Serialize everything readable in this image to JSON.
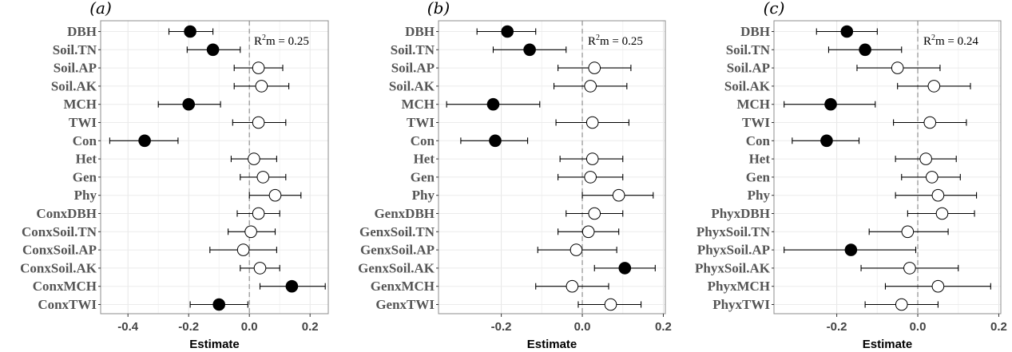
{
  "chart_data": [
    {
      "type": "scatter",
      "panel_label": "(a)",
      "xlabel": "Estimate",
      "x_ticks": [
        -0.4,
        -0.2,
        0.0,
        0.2
      ],
      "x_tick_labels": [
        "-0.4",
        "-0.2",
        "0.0",
        "0.2"
      ],
      "xlim": [
        -0.49,
        0.26
      ],
      "reference_line": 0,
      "annotation": {
        "prefix": "R",
        "sup": "2",
        "suffix": "m = ",
        "value": "0.25"
      },
      "categories": [
        "DBH",
        "Soil.TN",
        "Soil.AP",
        "Soil.AK",
        "MCH",
        "TWI",
        "Con",
        "Het",
        "Gen",
        "Phy",
        "ConxDBH",
        "ConxSoil.TN",
        "ConxSoil.AP",
        "ConxSoil.AK",
        "ConxMCH",
        "ConxTWI"
      ],
      "estimate": [
        -0.195,
        -0.12,
        0.03,
        0.04,
        -0.2,
        0.03,
        -0.345,
        0.015,
        0.045,
        0.085,
        0.03,
        0.005,
        -0.02,
        0.035,
        0.14,
        -0.1
      ],
      "lower": [
        -0.265,
        -0.205,
        -0.05,
        -0.05,
        -0.3,
        -0.055,
        -0.46,
        -0.06,
        -0.03,
        0.0,
        -0.04,
        -0.07,
        -0.13,
        -0.03,
        0.035,
        -0.195
      ],
      "upper": [
        -0.12,
        -0.03,
        0.11,
        0.13,
        -0.095,
        0.12,
        -0.235,
        0.09,
        0.12,
        0.17,
        0.1,
        0.085,
        0.09,
        0.1,
        0.25,
        -0.005
      ],
      "significant": [
        true,
        true,
        false,
        false,
        true,
        false,
        true,
        false,
        false,
        false,
        false,
        false,
        false,
        false,
        true,
        true
      ]
    },
    {
      "type": "scatter",
      "panel_label": "(b)",
      "xlabel": "Estimate",
      "x_ticks": [
        -0.2,
        0.0,
        0.2
      ],
      "x_tick_labels": [
        "-0.2",
        "0.0",
        "0.2"
      ],
      "xlim": [
        -0.355,
        0.205
      ],
      "reference_line": 0,
      "annotation": {
        "prefix": "R",
        "sup": "2",
        "suffix": "m = ",
        "value": "0.25"
      },
      "categories": [
        "DBH",
        "Soil.TN",
        "Soil.AP",
        "Soil.AK",
        "MCH",
        "TWI",
        "Con",
        "Het",
        "Gen",
        "Phy",
        "GenxDBH",
        "GenxSoil.TN",
        "GenxSoil.AP",
        "GenxSoil.AK",
        "GenxMCH",
        "GenxTWI"
      ],
      "estimate": [
        -0.185,
        -0.13,
        0.03,
        0.02,
        -0.22,
        0.025,
        -0.215,
        0.025,
        0.02,
        0.09,
        0.03,
        0.015,
        -0.015,
        0.105,
        -0.025,
        0.07
      ],
      "lower": [
        -0.26,
        -0.22,
        -0.06,
        -0.07,
        -0.335,
        -0.065,
        -0.3,
        -0.055,
        -0.06,
        0.0,
        -0.04,
        -0.06,
        -0.11,
        0.03,
        -0.115,
        -0.01
      ],
      "upper": [
        -0.115,
        -0.04,
        0.12,
        0.11,
        -0.105,
        0.115,
        -0.135,
        0.1,
        0.1,
        0.175,
        0.1,
        0.09,
        0.085,
        0.18,
        0.065,
        0.145
      ],
      "significant": [
        true,
        true,
        false,
        false,
        true,
        false,
        true,
        false,
        false,
        false,
        false,
        false,
        false,
        true,
        false,
        false
      ]
    },
    {
      "type": "scatter",
      "panel_label": "(c)",
      "xlabel": "Estimate",
      "x_ticks": [
        -0.2,
        0.0,
        0.2
      ],
      "x_tick_labels": [
        "-0.2",
        "0.0",
        "0.2"
      ],
      "xlim": [
        -0.355,
        0.205
      ],
      "reference_line": 0,
      "annotation": {
        "prefix": "R",
        "sup": "2",
        "suffix": "m = ",
        "value": "0.24"
      },
      "categories": [
        "DBH",
        "Soil.TN",
        "Soil.AP",
        "Soil.AK",
        "MCH",
        "TWI",
        "Con",
        "Het",
        "Gen",
        "Phy",
        "PhyxDBH",
        "PhyxSoil.TN",
        "PhyxSoil.AP",
        "PhyxSoil.AK",
        "PhyxMCH",
        "PhyxTWI"
      ],
      "estimate": [
        -0.175,
        -0.13,
        -0.05,
        0.04,
        -0.215,
        0.03,
        -0.225,
        0.02,
        0.035,
        0.05,
        0.06,
        -0.025,
        -0.165,
        -0.02,
        0.05,
        -0.04
      ],
      "lower": [
        -0.25,
        -0.22,
        -0.15,
        -0.05,
        -0.33,
        -0.06,
        -0.31,
        -0.055,
        -0.04,
        -0.055,
        -0.025,
        -0.12,
        -0.33,
        -0.14,
        -0.08,
        -0.13
      ],
      "upper": [
        -0.1,
        -0.04,
        0.055,
        0.13,
        -0.105,
        0.12,
        -0.145,
        0.095,
        0.105,
        0.145,
        0.14,
        0.075,
        -0.005,
        0.1,
        0.18,
        0.05
      ],
      "significant": [
        true,
        true,
        false,
        false,
        true,
        false,
        true,
        false,
        false,
        false,
        false,
        false,
        true,
        false,
        false,
        false
      ]
    }
  ]
}
